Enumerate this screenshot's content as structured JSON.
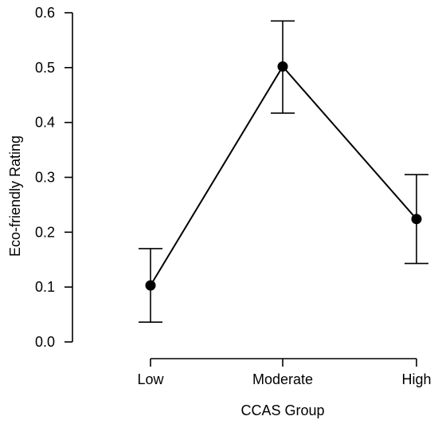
{
  "chart_data": {
    "type": "line",
    "categories": [
      "Low",
      "Moderate",
      "High"
    ],
    "series": [
      {
        "values": [
          0.103,
          0.502,
          0.224
        ],
        "error_low": [
          0.036,
          0.417,
          0.143
        ],
        "error_high": [
          0.17,
          0.585,
          0.305
        ]
      }
    ],
    "xlabel": "CCAS  Group",
    "ylabel": "Eco-friendly Rating",
    "ylim": [
      0.0,
      0.6
    ],
    "yticks": [
      "0.0",
      "0.1",
      "0.2",
      "0.3",
      "0.4",
      "0.5",
      "0.6"
    ],
    "grid": false,
    "colors": {
      "line": "#000000",
      "point": "#000000"
    }
  }
}
